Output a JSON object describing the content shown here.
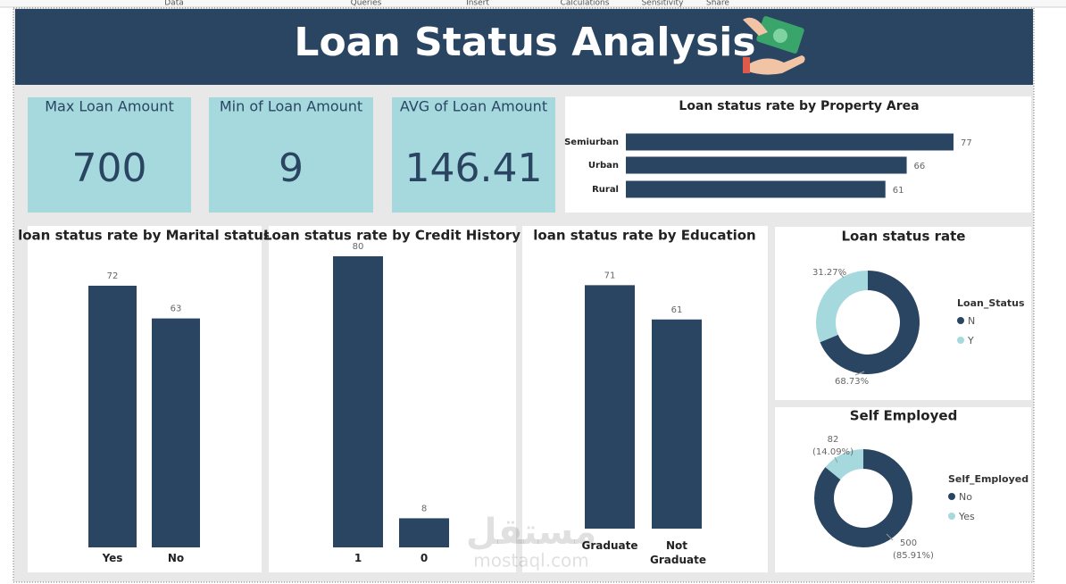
{
  "ribbon": [
    "Data",
    "Queries",
    "Insert",
    "Calculations",
    "Sensitivity",
    "Share"
  ],
  "header": {
    "title": "Loan Status Analysis"
  },
  "cards": [
    {
      "title": "Max Loan Amount",
      "value": 700
    },
    {
      "title": "Min of Loan Amount",
      "value": 9
    },
    {
      "title": "AVG of Loan Amount",
      "value": 146.41
    }
  ],
  "watermark": {
    "arabic": "مستقل",
    "latin": "mostaql.com"
  },
  "chart_data": [
    {
      "type": "hbar",
      "title": "Loan status rate by Property Area",
      "categories": [
        "Semiurban",
        "Urban",
        "Rural"
      ],
      "values": [
        77,
        66,
        61
      ],
      "color": "#2a4562"
    },
    {
      "type": "bar",
      "title": "loan status rate by Marital status",
      "categories": [
        "Yes",
        "No"
      ],
      "values": [
        72,
        63
      ],
      "color": "#2a4562"
    },
    {
      "type": "bar",
      "title": "Loan status rate by Credit History",
      "categories": [
        "1",
        "0"
      ],
      "values": [
        80,
        8
      ],
      "color": "#2a4562"
    },
    {
      "type": "bar",
      "title": "loan status rate by Education",
      "categories": [
        "Graduate",
        "Not Graduate"
      ],
      "values": [
        71,
        61
      ],
      "color": "#2a4562"
    },
    {
      "type": "donut",
      "title": "Loan status rate",
      "legend_title": "Loan_Status",
      "categories": [
        "N",
        "Y"
      ],
      "values": [
        68.73,
        31.27
      ],
      "value_labels": [
        "68.73%",
        "31.27%"
      ],
      "colors": [
        "#2a4562",
        "#a6d9de"
      ]
    },
    {
      "type": "donut",
      "title": "Self Employed",
      "legend_title": "Self_Employed",
      "categories": [
        "No",
        "Yes"
      ],
      "values": [
        500,
        82
      ],
      "percent_labels": [
        "(85.91%)",
        "(14.09%)"
      ],
      "colors": [
        "#2a4562",
        "#a6d9de"
      ]
    }
  ]
}
